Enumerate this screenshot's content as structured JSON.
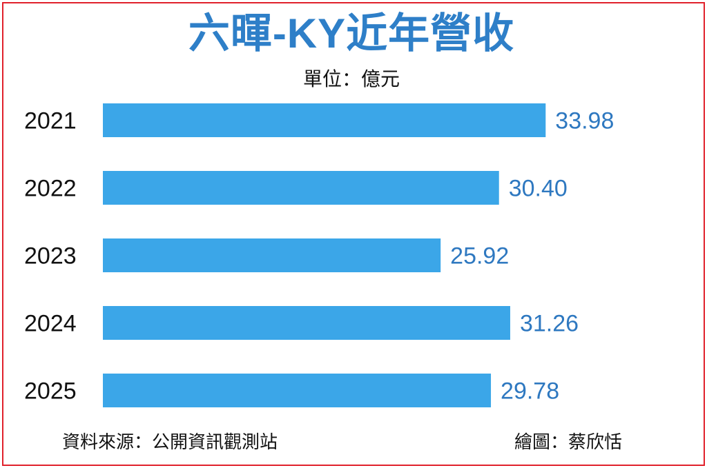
{
  "title": "六暉-KY近年營收",
  "unit_label": "單位：億元",
  "source_label": "資料來源：公開資訊觀測站",
  "credit_label": "繪圖：蔡欣恬",
  "colors": {
    "bar": "#3ba6e8",
    "value_text": "#2e78c0",
    "title": "#2e7fc8",
    "border": "#e0202a"
  },
  "chart_data": {
    "type": "bar",
    "orientation": "horizontal",
    "categories": [
      "2021",
      "2022",
      "2023",
      "2024",
      "2025"
    ],
    "values": [
      33.98,
      30.4,
      25.92,
      31.26,
      29.78
    ],
    "value_labels": [
      "33.98",
      "30.40",
      "25.92",
      "31.26",
      "29.78"
    ],
    "title": "六暉-KY近年營收",
    "unit": "億元",
    "xlim": [
      0,
      34.6
    ],
    "grid": false,
    "legend": "none"
  }
}
